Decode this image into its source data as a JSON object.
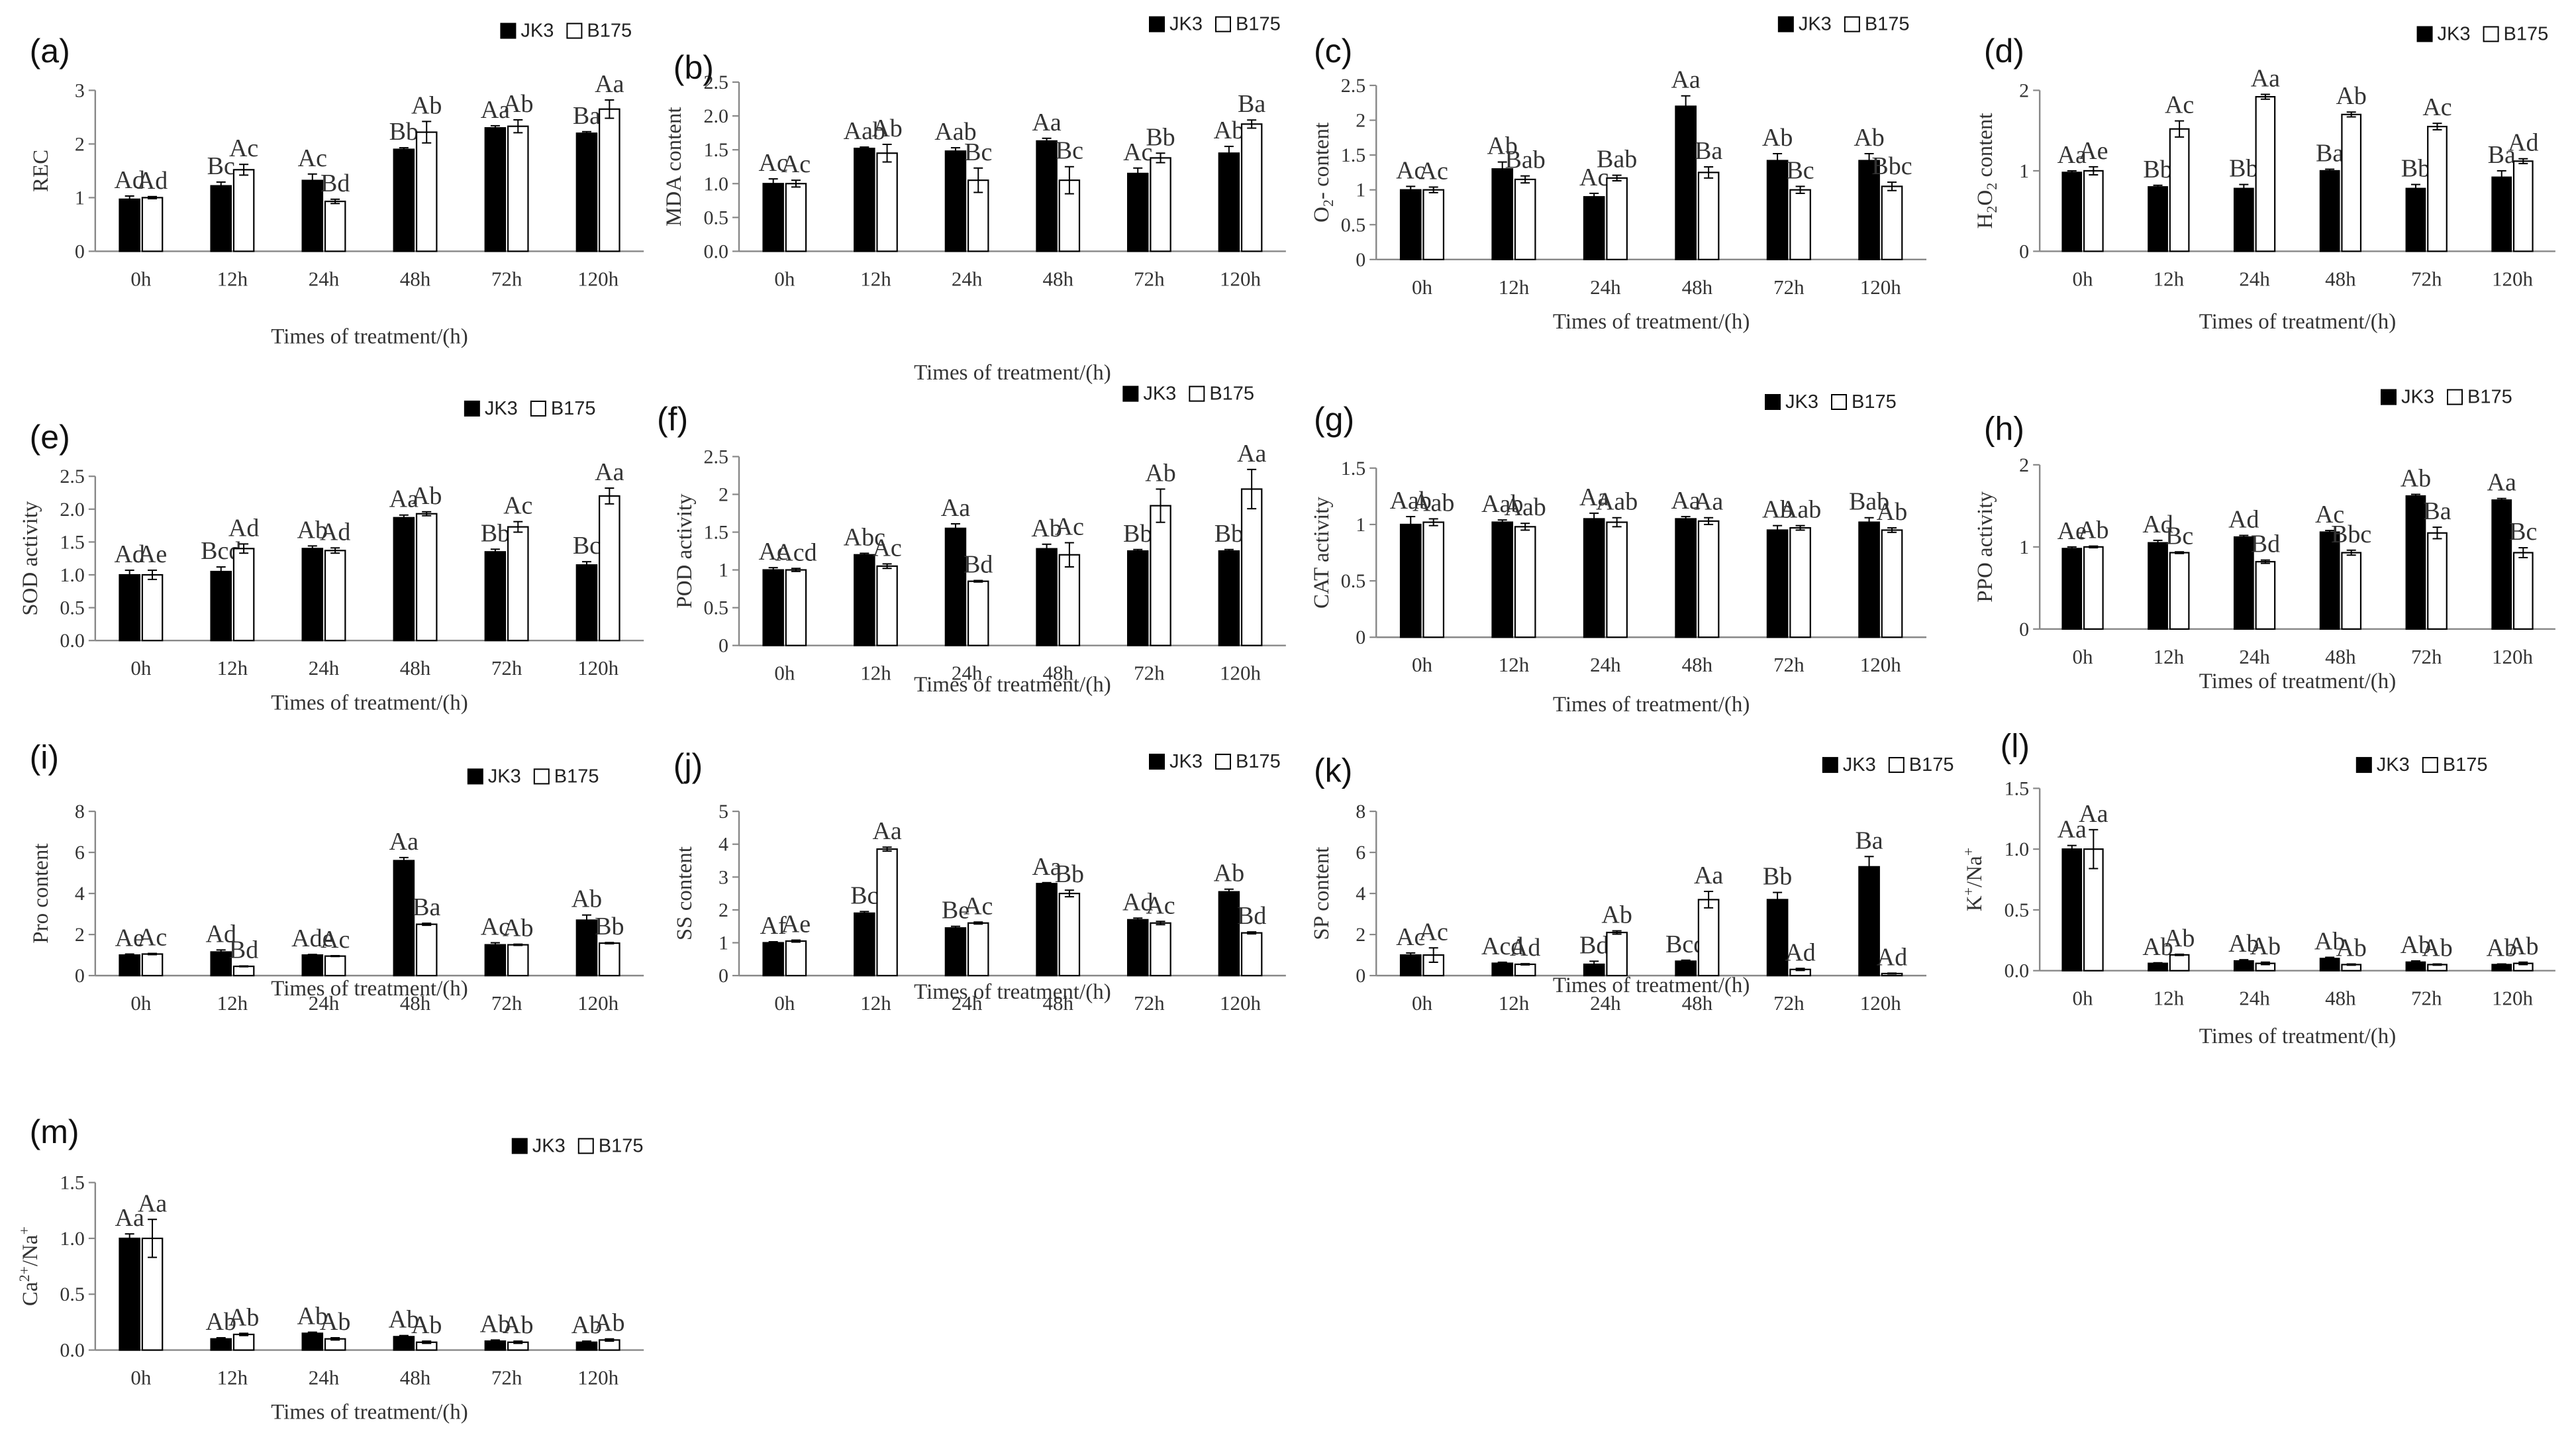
{
  "chart_data": [
    {
      "panel": "(a)",
      "type": "bar",
      "ylabel": "REC",
      "ylabel_sub": null,
      "xlabel": "Times of treatment/(h)",
      "categories": [
        "0h",
        "12h",
        "24h",
        "48h",
        "72h",
        "120h"
      ],
      "ylim": [
        0,
        3
      ],
      "yticks": [
        "0",
        "1",
        "2",
        "3"
      ],
      "series": [
        {
          "name": "JK3",
          "values": [
            0.97,
            1.22,
            1.32,
            1.9,
            2.3,
            2.2
          ],
          "errors": [
            0.06,
            0.07,
            0.12,
            0.03,
            0.04,
            0.03
          ]
        },
        {
          "name": "B175",
          "values": [
            1.0,
            1.52,
            0.93,
            2.22,
            2.33,
            2.65
          ],
          "errors": [
            0.02,
            0.1,
            0.04,
            0.2,
            0.12,
            0.17
          ]
        }
      ],
      "sig": [
        [
          "Ad",
          "Ad"
        ],
        [
          "Bc",
          "Ac"
        ],
        [
          "Ac",
          "Bd"
        ],
        [
          "Bb",
          "Ab"
        ],
        [
          "Aa",
          "Ab"
        ],
        [
          "Ba",
          "Aa"
        ]
      ]
    },
    {
      "panel": "(b)",
      "type": "bar",
      "ylabel": "MDA content",
      "ylabel_sub": null,
      "xlabel": "Times of treatment/(h)",
      "categories": [
        "0h",
        "12h",
        "24h",
        "48h",
        "72h",
        "120h"
      ],
      "ylim": [
        0,
        2.5
      ],
      "yticks": [
        "0.0",
        "0.5",
        "1.0",
        "1.5",
        "2.0",
        "2.5"
      ],
      "series": [
        {
          "name": "JK3",
          "values": [
            1.0,
            1.52,
            1.48,
            1.63,
            1.15,
            1.45
          ],
          "errors": [
            0.07,
            0.02,
            0.05,
            0.04,
            0.08,
            0.1
          ]
        },
        {
          "name": "B175",
          "values": [
            1.0,
            1.45,
            1.05,
            1.05,
            1.38,
            1.88
          ],
          "errors": [
            0.05,
            0.13,
            0.18,
            0.2,
            0.07,
            0.06
          ]
        }
      ],
      "sig": [
        [
          "Ac",
          "Ac"
        ],
        [
          "Aab",
          "Ab"
        ],
        [
          "Aab",
          "Bc"
        ],
        [
          "Aa",
          "Bc"
        ],
        [
          "Ac",
          "Bb"
        ],
        [
          "Ab",
          "Ba"
        ]
      ]
    },
    {
      "panel": "(c)",
      "type": "bar",
      "ylabel": "O",
      "ylabel_sub": "2",
      "ylabel_suffix": "- content",
      "xlabel": "Times of treatment/(h)",
      "categories": [
        "0h",
        "12h",
        "24h",
        "48h",
        "72h",
        "120h"
      ],
      "ylim": [
        0,
        2.5
      ],
      "yticks": [
        "0",
        "0.5",
        "1",
        "1.5",
        "2",
        "2.5"
      ],
      "series": [
        {
          "name": "JK3",
          "values": [
            1.0,
            1.3,
            0.9,
            2.2,
            1.42,
            1.42
          ],
          "errors": [
            0.05,
            0.1,
            0.05,
            0.15,
            0.1,
            0.1
          ]
        },
        {
          "name": "B175",
          "values": [
            1.0,
            1.15,
            1.17,
            1.25,
            1.0,
            1.05
          ],
          "errors": [
            0.04,
            0.05,
            0.04,
            0.08,
            0.05,
            0.06
          ]
        }
      ],
      "sig": [
        [
          "Ac",
          "Ac"
        ],
        [
          "Ab",
          "Bab"
        ],
        [
          "Ac",
          "Bab"
        ],
        [
          "Aa",
          "Ba"
        ],
        [
          "Ab",
          "Bc"
        ],
        [
          "Ab",
          "Bbc"
        ]
      ]
    },
    {
      "panel": "(d)",
      "type": "bar",
      "ylabel": "H",
      "ylabel_sub": "2",
      "ylabel_suffix": "O",
      "ylabel_sub2": "2",
      "ylabel_end": " content",
      "xlabel": "Times of treatment/(h)",
      "categories": [
        "0h",
        "12h",
        "24h",
        "48h",
        "72h",
        "120h"
      ],
      "ylim": [
        0,
        2
      ],
      "yticks": [
        "0",
        "1",
        "2"
      ],
      "series": [
        {
          "name": "JK3",
          "values": [
            0.98,
            0.8,
            0.78,
            1.0,
            0.78,
            0.92
          ],
          "errors": [
            0.02,
            0.02,
            0.05,
            0.02,
            0.05,
            0.08
          ]
        },
        {
          "name": "B175",
          "values": [
            1.0,
            1.52,
            1.92,
            1.7,
            1.55,
            1.12
          ],
          "errors": [
            0.05,
            0.1,
            0.03,
            0.03,
            0.04,
            0.03
          ]
        }
      ],
      "sig": [
        [
          "Aa",
          "Ae"
        ],
        [
          "Bb",
          "Ac"
        ],
        [
          "Bb",
          "Aa"
        ],
        [
          "Ba",
          "Ab"
        ],
        [
          "Bb",
          "Ac"
        ],
        [
          "Ba",
          "Ad"
        ]
      ]
    },
    {
      "panel": "(e)",
      "type": "bar",
      "ylabel": "SOD activity",
      "ylabel_sub": null,
      "xlabel": "Times of treatment/(h)",
      "categories": [
        "0h",
        "12h",
        "24h",
        "48h",
        "72h",
        "120h"
      ],
      "ylim": [
        0,
        2.5
      ],
      "yticks": [
        "0.0",
        "0.5",
        "1.0",
        "1.5",
        "2.0",
        "2.5"
      ],
      "series": [
        {
          "name": "JK3",
          "values": [
            1.0,
            1.05,
            1.4,
            1.87,
            1.35,
            1.15
          ],
          "errors": [
            0.07,
            0.07,
            0.04,
            0.04,
            0.04,
            0.05
          ]
        },
        {
          "name": "B175",
          "values": [
            1.0,
            1.4,
            1.37,
            1.93,
            1.73,
            2.2
          ],
          "errors": [
            0.07,
            0.07,
            0.04,
            0.03,
            0.08,
            0.12
          ]
        }
      ],
      "sig": [
        [
          "Ad",
          "Ae"
        ],
        [
          "Bcd",
          "Ad"
        ],
        [
          "Ab",
          "Ad"
        ],
        [
          "Aa",
          "Ab"
        ],
        [
          "Bb",
          "Ac"
        ],
        [
          "Bc",
          "Aa"
        ]
      ]
    },
    {
      "panel": "(f)",
      "type": "bar",
      "ylabel": "POD activity",
      "ylabel_sub": null,
      "xlabel": "Times of treatment/(h)",
      "categories": [
        "0h",
        "12h",
        "24h",
        "48h",
        "72h",
        "120h"
      ],
      "ylim": [
        0,
        2.5
      ],
      "yticks": [
        "0",
        "0.5",
        "1",
        "1.5",
        "2",
        "2.5"
      ],
      "series": [
        {
          "name": "JK3",
          "values": [
            1.0,
            1.2,
            1.55,
            1.28,
            1.25,
            1.25
          ],
          "errors": [
            0.03,
            0.02,
            0.06,
            0.06,
            0.02,
            0.02
          ]
        },
        {
          "name": "B175",
          "values": [
            1.0,
            1.05,
            0.85,
            1.2,
            1.85,
            2.07
          ],
          "errors": [
            0.02,
            0.03,
            0.01,
            0.16,
            0.22,
            0.26
          ]
        }
      ],
      "sig": [
        [
          "Ac",
          "Acd"
        ],
        [
          "Abc",
          "Ac"
        ],
        [
          "Aa",
          "Bd"
        ],
        [
          "Ab",
          "Ac"
        ],
        [
          "Bb",
          "Ab"
        ],
        [
          "Bb",
          "Aa"
        ]
      ]
    },
    {
      "panel": "(g)",
      "type": "bar",
      "ylabel": "CAT activity",
      "ylabel_sub": null,
      "xlabel": "Times of treatment/(h)",
      "categories": [
        "0h",
        "12h",
        "24h",
        "48h",
        "72h",
        "120h"
      ],
      "ylim": [
        0,
        1.5
      ],
      "yticks": [
        "0",
        "0.5",
        "1",
        "1.5"
      ],
      "series": [
        {
          "name": "JK3",
          "values": [
            1.0,
            1.02,
            1.05,
            1.05,
            0.95,
            1.02
          ],
          "errors": [
            0.07,
            0.02,
            0.05,
            0.02,
            0.04,
            0.04
          ]
        },
        {
          "name": "B175",
          "values": [
            1.02,
            0.98,
            1.02,
            1.03,
            0.97,
            0.95
          ],
          "errors": [
            0.03,
            0.03,
            0.04,
            0.03,
            0.02,
            0.02
          ]
        }
      ],
      "sig": [
        [
          "Aab",
          "Aab"
        ],
        [
          "Aab",
          "Aab"
        ],
        [
          "Aa",
          "Aab"
        ],
        [
          "Aa",
          "Aa"
        ],
        [
          "Ab",
          "Aab"
        ],
        [
          "Bab",
          "Ab"
        ]
      ]
    },
    {
      "panel": "(h)",
      "type": "bar",
      "ylabel": "PPO activity",
      "ylabel_sub": null,
      "xlabel": "Times of treatment/(h)",
      "categories": [
        "0h",
        "12h",
        "24h",
        "48h",
        "72h",
        "120h"
      ],
      "ylim": [
        0,
        2
      ],
      "yticks": [
        "0",
        "1",
        "2"
      ],
      "series": [
        {
          "name": "JK3",
          "values": [
            0.98,
            1.05,
            1.12,
            1.18,
            1.62,
            1.57
          ],
          "errors": [
            0.02,
            0.03,
            0.02,
            0.02,
            0.02,
            0.02
          ]
        },
        {
          "name": "B175",
          "values": [
            1.0,
            0.93,
            0.82,
            0.93,
            1.17,
            0.93
          ],
          "errors": [
            0.01,
            0.01,
            0.02,
            0.03,
            0.07,
            0.06
          ]
        }
      ],
      "sig": [
        [
          "Ae",
          "Ab"
        ],
        [
          "Ad",
          "Bc"
        ],
        [
          "Ad",
          "Bd"
        ],
        [
          "Ac",
          "Bbc"
        ],
        [
          "Ab",
          "Ba"
        ],
        [
          "Aa",
          "Bc"
        ]
      ]
    },
    {
      "panel": "(i)",
      "type": "bar",
      "ylabel": "Pro content",
      "ylabel_sub": null,
      "xlabel": "Times of treatment/(h)",
      "categories": [
        "0h",
        "12h",
        "24h",
        "48h",
        "72h",
        "120h"
      ],
      "ylim": [
        0,
        8
      ],
      "yticks": [
        "0",
        "2",
        "4",
        "6",
        "8"
      ],
      "series": [
        {
          "name": "JK3",
          "values": [
            1.0,
            1.15,
            1.0,
            5.6,
            1.5,
            2.7
          ],
          "errors": [
            0.05,
            0.1,
            0.03,
            0.15,
            0.1,
            0.25
          ]
        },
        {
          "name": "B175",
          "values": [
            1.05,
            0.45,
            0.95,
            2.5,
            1.5,
            1.58
          ],
          "errors": [
            0.03,
            0.02,
            0.02,
            0.05,
            0.03,
            0.03
          ]
        }
      ],
      "sig": [
        [
          "Ae",
          "Ac"
        ],
        [
          "Ad",
          "Bd"
        ],
        [
          "Ade",
          "Ac"
        ],
        [
          "Aa",
          "Ba"
        ],
        [
          "Ac",
          "Ab"
        ],
        [
          "Ab",
          "Bb"
        ]
      ]
    },
    {
      "panel": "(j)",
      "type": "bar",
      "ylabel": "SS content",
      "ylabel_sub": null,
      "xlabel": "Times of treatment/(h)",
      "categories": [
        "0h",
        "12h",
        "24h",
        "48h",
        "72h",
        "120h"
      ],
      "ylim": [
        0,
        5
      ],
      "yticks": [
        "0",
        "1",
        "2",
        "3",
        "4",
        "5"
      ],
      "series": [
        {
          "name": "JK3",
          "values": [
            1.0,
            1.9,
            1.45,
            2.8,
            1.7,
            2.55
          ],
          "errors": [
            0.03,
            0.05,
            0.05,
            0.03,
            0.05,
            0.08
          ]
        },
        {
          "name": "B175",
          "values": [
            1.05,
            3.85,
            1.6,
            2.5,
            1.6,
            1.3
          ],
          "errors": [
            0.03,
            0.06,
            0.03,
            0.1,
            0.05,
            0.03
          ]
        }
      ],
      "sig": [
        [
          "Af",
          "Ae"
        ],
        [
          "Bc",
          "Aa"
        ],
        [
          "Be",
          "Ac"
        ],
        [
          "Aa",
          "Bb"
        ],
        [
          "Ad",
          "Ac"
        ],
        [
          "Ab",
          "Bd"
        ]
      ]
    },
    {
      "panel": "(k)",
      "type": "bar",
      "ylabel": "SP content",
      "ylabel_sub": null,
      "xlabel": "Times of treatment/(h)",
      "categories": [
        "0h",
        "12h",
        "24h",
        "48h",
        "72h",
        "120h"
      ],
      "ylim": [
        0,
        8
      ],
      "yticks": [
        "0",
        "2",
        "4",
        "6",
        "8"
      ],
      "series": [
        {
          "name": "JK3",
          "values": [
            1.0,
            0.6,
            0.55,
            0.7,
            3.7,
            5.3
          ],
          "errors": [
            0.1,
            0.05,
            0.15,
            0.05,
            0.35,
            0.5
          ]
        },
        {
          "name": "B175",
          "values": [
            1.0,
            0.55,
            2.1,
            3.7,
            0.3,
            0.1
          ],
          "errors": [
            0.35,
            0.03,
            0.08,
            0.4,
            0.05,
            0.02
          ]
        }
      ],
      "sig": [
        [
          "Ac",
          "Ac"
        ],
        [
          "Acd",
          "Ad"
        ],
        [
          "Bd",
          "Ab"
        ],
        [
          "Bcd",
          "Aa"
        ],
        [
          "Bb",
          "Ad"
        ],
        [
          "Ba",
          "Ad"
        ]
      ]
    },
    {
      "panel": "(l)",
      "type": "bar",
      "ylabel": "K",
      "ylabel_sup": "+",
      "ylabel_suffix": "/Na",
      "ylabel_sup2": "+",
      "ylabel_sub": null,
      "xlabel": "Times of treatment/(h)",
      "categories": [
        "0h",
        "12h",
        "24h",
        "48h",
        "72h",
        "120h"
      ],
      "ylim": [
        0,
        1.5
      ],
      "yticks": [
        "0.0",
        "0.5",
        "1.0",
        "1.5"
      ],
      "series": [
        {
          "name": "JK3",
          "values": [
            1.0,
            0.06,
            0.08,
            0.1,
            0.07,
            0.05
          ],
          "errors": [
            0.03,
            0.005,
            0.01,
            0.01,
            0.01,
            0.005
          ]
        },
        {
          "name": "B175",
          "values": [
            1.0,
            0.13,
            0.06,
            0.05,
            0.05,
            0.06
          ],
          "errors": [
            0.16,
            0.005,
            0.01,
            0.005,
            0.005,
            0.01
          ]
        }
      ],
      "sig": [
        [
          "Aa",
          "Aa"
        ],
        [
          "Ab",
          "Ab"
        ],
        [
          "Ab",
          "Ab"
        ],
        [
          "Ab",
          "Ab"
        ],
        [
          "Ab",
          "Ab"
        ],
        [
          "Ab",
          "Ab"
        ]
      ]
    },
    {
      "panel": "(m)",
      "type": "bar",
      "ylabel": "Ca",
      "ylabel_sup": "2+",
      "ylabel_suffix": "/Na",
      "ylabel_sup2": "+",
      "ylabel_sub": null,
      "xlabel": "Times of treatment/(h)",
      "categories": [
        "0h",
        "12h",
        "24h",
        "48h",
        "72h",
        "120h"
      ],
      "ylim": [
        0,
        1.5
      ],
      "yticks": [
        "0.0",
        "0.5",
        "1.0",
        "1.5"
      ],
      "series": [
        {
          "name": "JK3",
          "values": [
            1.0,
            0.1,
            0.15,
            0.12,
            0.08,
            0.07
          ],
          "errors": [
            0.04,
            0.01,
            0.01,
            0.01,
            0.01,
            0.01
          ]
        },
        {
          "name": "B175",
          "values": [
            1.0,
            0.14,
            0.1,
            0.07,
            0.07,
            0.09
          ],
          "errors": [
            0.17,
            0.01,
            0.01,
            0.01,
            0.01,
            0.01
          ]
        }
      ],
      "sig": [
        [
          "Aa",
          "Aa"
        ],
        [
          "Ab",
          "Ab"
        ],
        [
          "Ab",
          "Ab"
        ],
        [
          "Ab",
          "Ab"
        ],
        [
          "Ab",
          "Ab"
        ],
        [
          "Ab",
          "Ab"
        ]
      ]
    }
  ],
  "legend": {
    "series": [
      "JK3",
      "B175"
    ]
  },
  "colors": {
    "jk3": "#000000",
    "b175": "#ffffff",
    "axis": "#888888",
    "text": "#333333"
  }
}
